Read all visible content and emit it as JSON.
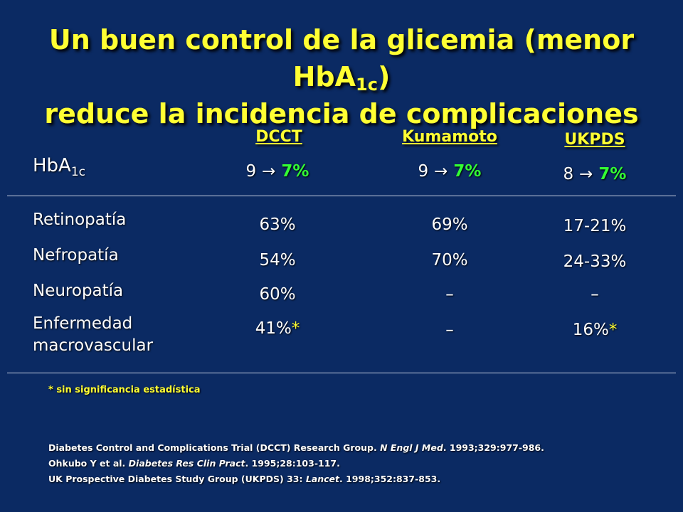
{
  "title": {
    "line1_a": "Un buen control de la glicemia (menor HbA",
    "line1_sub": "1c",
    "line1_b": ")",
    "line2": "reduce la incidencia de complicaciones"
  },
  "hba1c_label": {
    "main": "HbA",
    "sub": "1c"
  },
  "columns": [
    {
      "name": "DCCT",
      "from": "9",
      "to": "7%"
    },
    {
      "name": "Kumamoto",
      "from": "9",
      "to": "7%"
    },
    {
      "name": "UKPDS",
      "from": "8",
      "to": "7%"
    }
  ],
  "arrow_glyph": "→",
  "rows": [
    {
      "label": "Retinopatía",
      "values": [
        "63%",
        "69%",
        "17-21%"
      ]
    },
    {
      "label": "Nefropatía",
      "values": [
        "54%",
        "70%",
        "24-33%"
      ]
    },
    {
      "label": "Neuropatía",
      "values": [
        "60%",
        "–",
        "–"
      ]
    },
    {
      "label_line1": "Enfermedad",
      "label_line2": "macrovascular",
      "values": [
        "41%",
        "–",
        "16%"
      ],
      "stars": [
        "*",
        "",
        "*"
      ]
    }
  ],
  "footnote": "* sin significancia estadística",
  "references": [
    {
      "pre": "Diabetes Control and Complications Trial (DCCT) Research Group. ",
      "journal": "N Engl J Med",
      "post": ". 1993;329:977-986."
    },
    {
      "pre": "Ohkubo Y et al. ",
      "journal": "Diabetes Res Clin Pract",
      "post": ". 1995;28:103-117."
    },
    {
      "pre": "UK Prospective Diabetes Study Group (UKPDS) 33: ",
      "journal": "Lancet",
      "post": ". 1998;352:837-853."
    }
  ],
  "colors": {
    "background": "#0b2a63",
    "title": "#ffff33",
    "target": "#33ff33",
    "text": "#ffffff"
  }
}
